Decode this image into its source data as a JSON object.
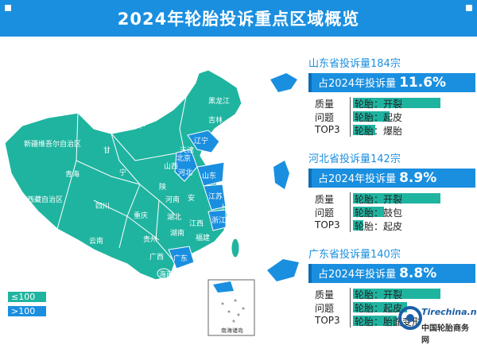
{
  "title": "2024年轮胎投诉重点区域概览",
  "colors": {
    "header": "#1a8fe0",
    "low": "#1fb4a0",
    "high": "#1a8fe0"
  },
  "legend": {
    "low_label": "≤100",
    "high_label": ">100"
  },
  "map": {
    "provinces_low": [
      "新疆维吾尔自治区",
      "西藏自治区",
      "青海",
      "甘",
      "四川",
      "云南",
      "内蒙古自治区",
      "黑龙江",
      "吉林",
      "山西",
      "陕",
      "河南",
      "湖北",
      "湖南",
      "贵州",
      "广西",
      "重庆",
      "宁",
      "安",
      "江西",
      "福建",
      "海南"
    ],
    "provinces_high": [
      "辽宁",
      "北京",
      "天津",
      "河北",
      "山东",
      "江苏",
      "浙江",
      "广东",
      "上海"
    ],
    "inset_label": "南海诸岛"
  },
  "panels": [
    {
      "title": "山东省投诉量184宗",
      "share_prefix": "占2024年投诉量",
      "share": "11.6%",
      "labels": [
        "质量",
        "问题",
        "TOP3"
      ],
      "items": [
        "轮胎：开裂",
        "轮胎：起皮",
        "轮胎：爆胎"
      ],
      "bars": [
        1.0,
        0.42,
        0.25
      ]
    },
    {
      "title": "河北省投诉量142宗",
      "share_prefix": "占2024年投诉量",
      "share": "8.9%",
      "labels": [
        "质量",
        "问题",
        "TOP3"
      ],
      "items": [
        "轮胎：开裂",
        "轮胎：鼓包",
        "轮胎：起皮"
      ],
      "bars": [
        1.0,
        0.35,
        0.12
      ]
    },
    {
      "title": "广东省投诉量140宗",
      "share_prefix": "占2024年投诉量",
      "share": "8.8%",
      "labels": [
        "质量",
        "问题",
        "TOP3"
      ],
      "items": [
        "轮胎：开裂",
        "轮胎：起皮",
        "轮胎：胎面变形"
      ],
      "bars": [
        1.0,
        0.62,
        0.5
      ]
    }
  ],
  "watermark": {
    "brand": "Tirechina.net",
    "cn": "中国轮胎商务网"
  }
}
